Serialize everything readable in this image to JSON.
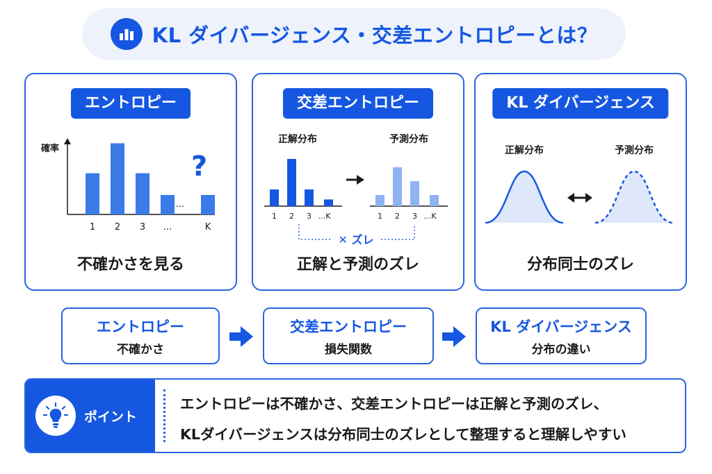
{
  "title": "KL ダイバージェンス・交差エントロピーとは？",
  "cards": {
    "entropy": {
      "label": "エントロピー",
      "axis_label": "確率",
      "question_mark": "?",
      "caption": "不確かさを見る",
      "chart_data": {
        "type": "bar",
        "categories": [
          "1",
          "2",
          "3",
          "…",
          "K"
        ],
        "values": [
          0.55,
          0.95,
          0.55,
          0.26,
          0.26
        ],
        "dots": "…"
      }
    },
    "cross_entropy": {
      "label": "交差エントロピー",
      "true_label": "正解分布",
      "pred_label": "予測分布",
      "caption": "正解と予測のズレ",
      "gap_label": "✕ ズレ",
      "chart_data": [
        {
          "type": "bar",
          "name": "正解分布",
          "categories": [
            "1",
            "2",
            "3",
            "…K"
          ],
          "values": [
            0.3,
            0.85,
            0.3,
            0.12
          ]
        },
        {
          "type": "bar",
          "name": "予測分布",
          "categories": [
            "1",
            "2",
            "3",
            "…K"
          ],
          "values": [
            0.2,
            0.7,
            0.45,
            0.2
          ]
        }
      ]
    },
    "kl": {
      "label": "KL ダイバージェンス",
      "true_label": "正解分布",
      "pred_label": "予測分布",
      "caption": "分布同士のズレ"
    }
  },
  "flow": [
    {
      "title": "エントロピー",
      "sub": "不確かさ"
    },
    {
      "title": "交差エントロピー",
      "sub": "損失関数"
    },
    {
      "title": "KL ダイバージェンス",
      "sub": "分布の違い"
    }
  ],
  "point": {
    "label": "ポイント",
    "lines": [
      "エントロピーは不確かさ、交差エントロピーは正解と予測のズレ、",
      "KLダイバージェンスは分布同士のズレとして整理すると理解しやすい"
    ]
  },
  "colors": {
    "primary": "#1557e0",
    "bar": "#3b7be8",
    "bar_light": "#8fb4f2",
    "curve_fill": "#dfe8fa"
  }
}
